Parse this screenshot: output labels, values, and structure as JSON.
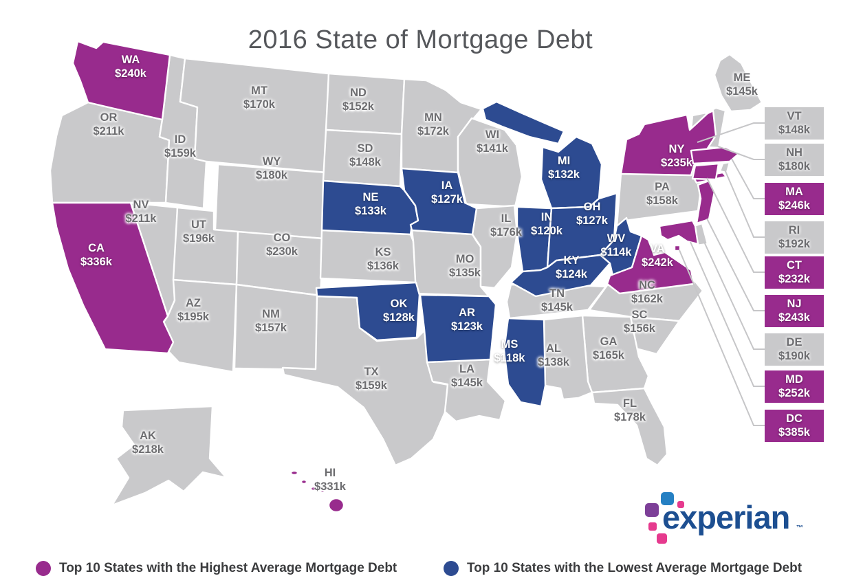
{
  "title": "2016 State of Mortgage Debt",
  "legend": {
    "highest": {
      "label": "Top 10 States with the Highest Average Mortgage Debt",
      "color": "#982b8d"
    },
    "lowest": {
      "label": "Top 10 States with the Lowest Average Mortgage Debt",
      "color": "#2d4b91"
    }
  },
  "logo": {
    "brand": "experian",
    "trademark": "™"
  },
  "palette": {
    "highest": "#982b8d",
    "lowest": "#2d4b91",
    "other": "#c9c9cb",
    "map_border": "#ffffff",
    "label_on_gray": "#6d6d70",
    "label_on_color": "#ffffff",
    "connector": "#c6c6c8",
    "logo_blue_square": "#2580c3",
    "logo_purple_square": "#7d3f98",
    "logo_pink_square": "#e63a8e",
    "logo_wordmark": "#1d4f91"
  },
  "chart_data": {
    "type": "heatmap",
    "subtype": "us-choropleth-map",
    "title": "2016 State of Mortgage Debt",
    "value_unit": "average mortgage debt (USD, thousands)",
    "category_meaning": {
      "highest": "Top 10 States with the Highest Average Mortgage Debt",
      "lowest": "Top 10 States with the Lowest Average Mortgage Debt",
      "other": "all remaining states"
    },
    "callout_states": [
      "VT",
      "NH",
      "MA",
      "RI",
      "CT",
      "NJ",
      "DE",
      "MD",
      "DC"
    ],
    "states": [
      {
        "abbr": "WA",
        "value": "$240k",
        "category": "highest"
      },
      {
        "abbr": "OR",
        "value": "$211k",
        "category": "other"
      },
      {
        "abbr": "CA",
        "value": "$336k",
        "category": "highest"
      },
      {
        "abbr": "NV",
        "value": "$211k",
        "category": "other"
      },
      {
        "abbr": "ID",
        "value": "$159k",
        "category": "other"
      },
      {
        "abbr": "MT",
        "value": "$170k",
        "category": "other"
      },
      {
        "abbr": "WY",
        "value": "$180k",
        "category": "other"
      },
      {
        "abbr": "UT",
        "value": "$196k",
        "category": "other"
      },
      {
        "abbr": "CO",
        "value": "$230k",
        "category": "other"
      },
      {
        "abbr": "AZ",
        "value": "$195k",
        "category": "other"
      },
      {
        "abbr": "NM",
        "value": "$157k",
        "category": "other"
      },
      {
        "abbr": "ND",
        "value": "$152k",
        "category": "other"
      },
      {
        "abbr": "SD",
        "value": "$148k",
        "category": "other"
      },
      {
        "abbr": "NE",
        "value": "$133k",
        "category": "lowest"
      },
      {
        "abbr": "KS",
        "value": "$136k",
        "category": "other"
      },
      {
        "abbr": "OK",
        "value": "$128k",
        "category": "lowest"
      },
      {
        "abbr": "TX",
        "value": "$159k",
        "category": "other"
      },
      {
        "abbr": "MN",
        "value": "$172k",
        "category": "other"
      },
      {
        "abbr": "IA",
        "value": "$127k",
        "category": "lowest"
      },
      {
        "abbr": "MO",
        "value": "$135k",
        "category": "other"
      },
      {
        "abbr": "AR",
        "value": "$123k",
        "category": "lowest"
      },
      {
        "abbr": "LA",
        "value": "$145k",
        "category": "other"
      },
      {
        "abbr": "WI",
        "value": "$141k",
        "category": "other"
      },
      {
        "abbr": "IL",
        "value": "$176k",
        "category": "other"
      },
      {
        "abbr": "MS",
        "value": "$118k",
        "category": "lowest"
      },
      {
        "abbr": "MI",
        "value": "$132k",
        "category": "lowest"
      },
      {
        "abbr": "IN",
        "value": "$120k",
        "category": "lowest"
      },
      {
        "abbr": "OH",
        "value": "$127k",
        "category": "lowest"
      },
      {
        "abbr": "KY",
        "value": "$124k",
        "category": "lowest"
      },
      {
        "abbr": "TN",
        "value": "$145k",
        "category": "other"
      },
      {
        "abbr": "WV",
        "value": "$114k",
        "category": "lowest"
      },
      {
        "abbr": "VA",
        "value": "$242k",
        "category": "highest"
      },
      {
        "abbr": "NC",
        "value": "$162k",
        "category": "other"
      },
      {
        "abbr": "SC",
        "value": "$156k",
        "category": "other"
      },
      {
        "abbr": "GA",
        "value": "$165k",
        "category": "other"
      },
      {
        "abbr": "AL",
        "value": "$138k",
        "category": "other"
      },
      {
        "abbr": "FL",
        "value": "$178k",
        "category": "other"
      },
      {
        "abbr": "PA",
        "value": "$158k",
        "category": "other"
      },
      {
        "abbr": "NY",
        "value": "$235k",
        "category": "highest"
      },
      {
        "abbr": "ME",
        "value": "$145k",
        "category": "other"
      },
      {
        "abbr": "VT",
        "value": "$148k",
        "category": "other"
      },
      {
        "abbr": "NH",
        "value": "$180k",
        "category": "other"
      },
      {
        "abbr": "MA",
        "value": "$246k",
        "category": "highest"
      },
      {
        "abbr": "RI",
        "value": "$192k",
        "category": "other"
      },
      {
        "abbr": "CT",
        "value": "$232k",
        "category": "highest"
      },
      {
        "abbr": "NJ",
        "value": "$243k",
        "category": "highest"
      },
      {
        "abbr": "DE",
        "value": "$190k",
        "category": "other"
      },
      {
        "abbr": "MD",
        "value": "$252k",
        "category": "highest"
      },
      {
        "abbr": "DC",
        "value": "$385k",
        "category": "highest"
      },
      {
        "abbr": "AK",
        "value": "$218k",
        "category": "other"
      },
      {
        "abbr": "HI",
        "value": "$331k",
        "category": "highest"
      }
    ]
  }
}
